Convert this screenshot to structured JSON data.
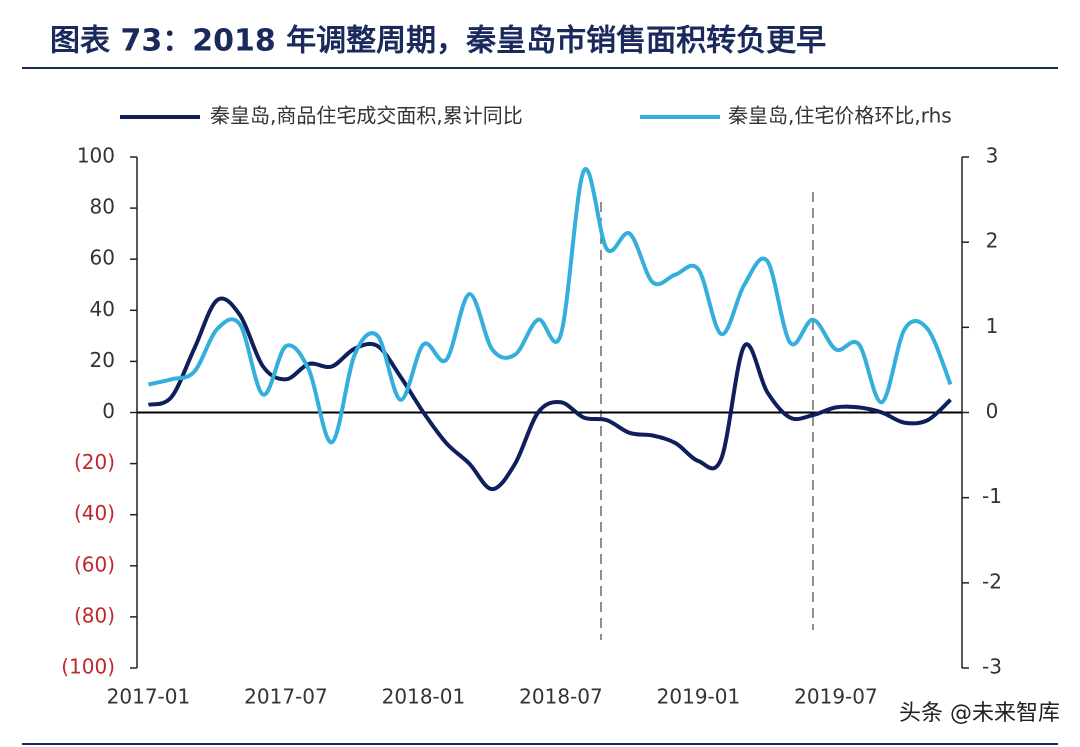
{
  "chart_data": {
    "type": "line",
    "title": "图表 73：2018 年调整周期，秦皇岛市销售面积转负更早",
    "x": [
      "2017-01",
      "2017-02",
      "2017-03",
      "2017-04",
      "2017-05",
      "2017-06",
      "2017-07",
      "2017-08",
      "2017-09",
      "2017-10",
      "2017-11",
      "2017-12",
      "2018-01",
      "2018-02",
      "2018-03",
      "2018-04",
      "2018-05",
      "2018-06",
      "2018-07",
      "2018-08",
      "2018-09",
      "2018-10",
      "2018-11",
      "2018-12",
      "2019-01",
      "2019-02",
      "2019-03",
      "2019-04",
      "2019-05",
      "2019-06",
      "2019-07",
      "2019-08",
      "2019-09",
      "2019-10",
      "2019-11",
      "2019-12"
    ],
    "xticks": [
      "2017-01",
      "2017-07",
      "2018-01",
      "2018-07",
      "2019-01",
      "2019-07"
    ],
    "series": [
      {
        "name": "秦皇岛,商品住宅成交面积,累计同比",
        "color": "#0e1f5b",
        "values": [
          3,
          6,
          25,
          44,
          38,
          18,
          13,
          19,
          18,
          25,
          26,
          14,
          0,
          -12,
          -20,
          -30,
          -20,
          0,
          4,
          -2,
          -3,
          -8,
          -9,
          -12,
          -19,
          -18,
          26,
          8,
          -2,
          -1,
          2,
          2,
          0,
          -4,
          -3,
          5
        ]
      },
      {
        "name": "秦皇岛,住宅价格环比,rhs",
        "color": "#34afdc",
        "axis": "y2",
        "values": [
          0.33,
          0.39,
          0.48,
          0.98,
          1.03,
          0.21,
          0.78,
          0.5,
          -0.35,
          0.68,
          0.9,
          0.15,
          0.8,
          0.62,
          1.39,
          0.74,
          0.68,
          1.09,
          0.92,
          2.84,
          1.92,
          2.1,
          1.53,
          1.62,
          1.68,
          0.92,
          1.5,
          1.78,
          0.82,
          1.09,
          0.74,
          0.8,
          0.12,
          0.98,
          0.98,
          0.33
        ]
      }
    ],
    "ylim": [
      -100,
      100
    ],
    "yticks": [
      {
        "value": -100,
        "label": "(100)"
      },
      {
        "value": -80,
        "label": "(80)"
      },
      {
        "value": -60,
        "label": "(60)"
      },
      {
        "value": -40,
        "label": "(40)"
      },
      {
        "value": -20,
        "label": "(20)"
      },
      0,
      20,
      40,
      60,
      80,
      100
    ],
    "y2lim": [
      -3,
      3
    ],
    "y2ticks": [
      -3,
      -2,
      -1,
      0,
      1,
      2,
      3
    ],
    "negative_tick_color": "#c0282d",
    "watermark": "头条 @未来智库"
  }
}
